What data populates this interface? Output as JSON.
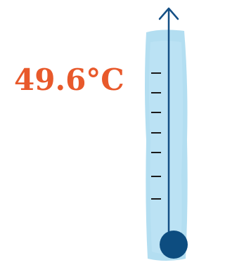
{
  "reading": {
    "label": "49.6°C"
  }
}
